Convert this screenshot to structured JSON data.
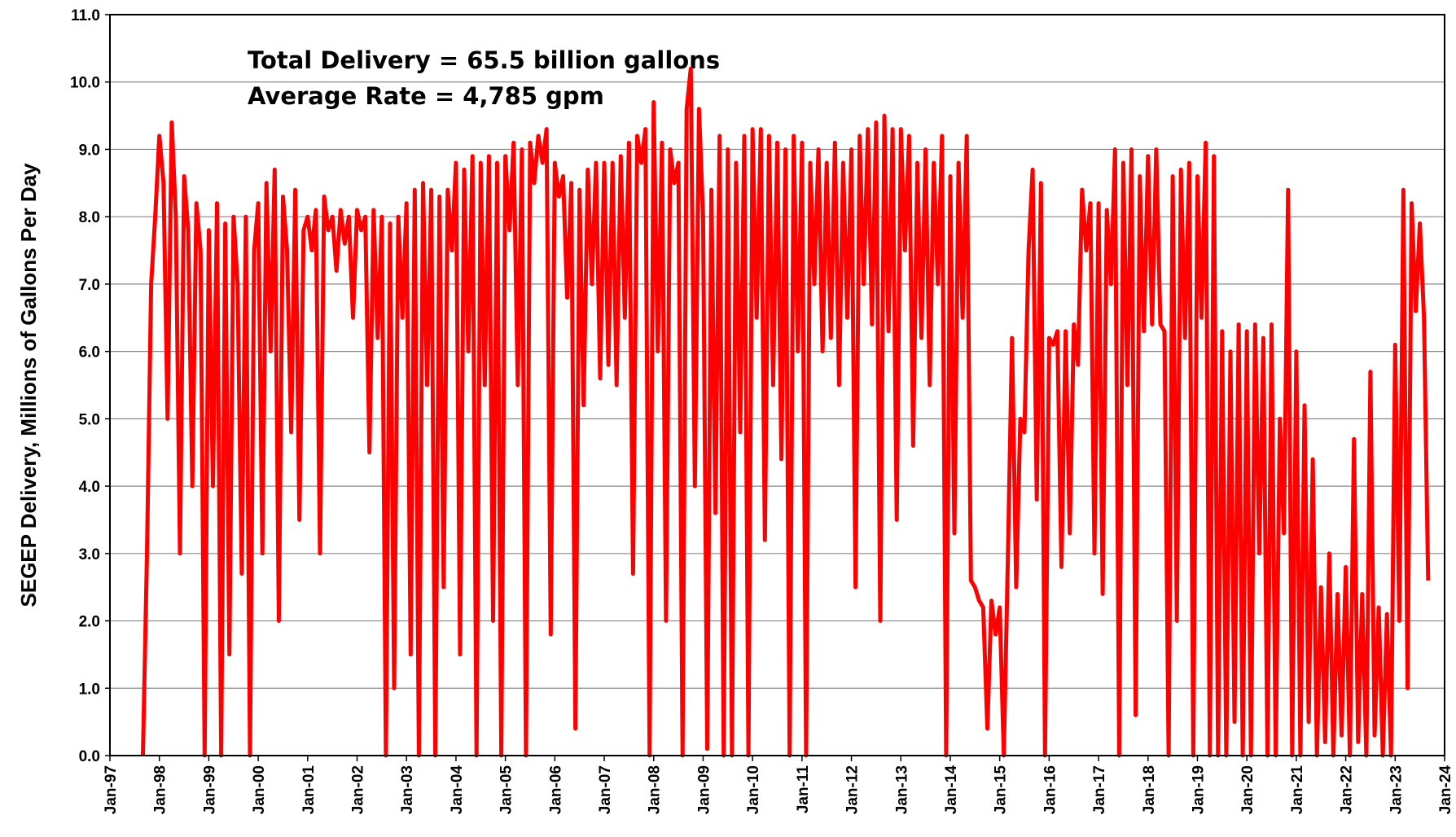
{
  "chart_data": {
    "type": "line",
    "ylabel": "SEGEP Delivery, Millions of Gallons Per Day",
    "annotations": [
      "Total Delivery = 65.5 billion gallons",
      "Average Rate = 4,785 gpm"
    ],
    "grid": true,
    "ylim": [
      0,
      11
    ],
    "yticks": [
      {
        "value": 0,
        "label": "0.0"
      },
      {
        "value": 1,
        "label": "1.0"
      },
      {
        "value": 2,
        "label": "2.0"
      },
      {
        "value": 3,
        "label": "3.0"
      },
      {
        "value": 4,
        "label": "4.0"
      },
      {
        "value": 5,
        "label": "5.0"
      },
      {
        "value": 6,
        "label": "6.0"
      },
      {
        "value": 7,
        "label": "7.0"
      },
      {
        "value": 8,
        "label": "8.0"
      },
      {
        "value": 9,
        "label": "9.0"
      },
      {
        "value": 10,
        "label": "10.0"
      },
      {
        "value": 11,
        "label": "11.0"
      }
    ],
    "xlim": [
      "1997-01",
      "2024-01"
    ],
    "xticks": [
      {
        "value": "1997-01",
        "label": "Jan-97"
      },
      {
        "value": "1998-01",
        "label": "Jan-98"
      },
      {
        "value": "1999-01",
        "label": "Jan-99"
      },
      {
        "value": "2000-01",
        "label": "Jan-00"
      },
      {
        "value": "2001-01",
        "label": "Jan-01"
      },
      {
        "value": "2002-01",
        "label": "Jan-02"
      },
      {
        "value": "2003-01",
        "label": "Jan-03"
      },
      {
        "value": "2004-01",
        "label": "Jan-04"
      },
      {
        "value": "2005-01",
        "label": "Jan-05"
      },
      {
        "value": "2006-01",
        "label": "Jan-06"
      },
      {
        "value": "2007-01",
        "label": "Jan-07"
      },
      {
        "value": "2008-01",
        "label": "Jan-08"
      },
      {
        "value": "2009-01",
        "label": "Jan-09"
      },
      {
        "value": "2010-01",
        "label": "Jan-10"
      },
      {
        "value": "2011-01",
        "label": "Jan-11"
      },
      {
        "value": "2012-01",
        "label": "Jan-12"
      },
      {
        "value": "2013-01",
        "label": "Jan-13"
      },
      {
        "value": "2014-01",
        "label": "Jan-14"
      },
      {
        "value": "2015-01",
        "label": "Jan-15"
      },
      {
        "value": "2016-01",
        "label": "Jan-16"
      },
      {
        "value": "2017-01",
        "label": "Jan-17"
      },
      {
        "value": "2018-01",
        "label": "Jan-18"
      },
      {
        "value": "2019-01",
        "label": "Jan-19"
      },
      {
        "value": "2020-01",
        "label": "Jan-20"
      },
      {
        "value": "2021-01",
        "label": "Jan-21"
      },
      {
        "value": "2022-01",
        "label": "Jan-22"
      },
      {
        "value": "2023-01",
        "label": "Jan-23"
      },
      {
        "value": "2024-01",
        "label": "Jan-24"
      }
    ],
    "x": [
      "1997-09",
      "1997-10",
      "1997-11",
      "1997-12",
      "1998-01",
      "1998-02",
      "1998-03",
      "1998-04",
      "1998-05",
      "1998-06",
      "1998-07",
      "1998-08",
      "1998-09",
      "1998-10",
      "1998-11",
      "1998-12",
      "1999-01",
      "1999-02",
      "1999-03",
      "1999-04",
      "1999-05",
      "1999-06",
      "1999-07",
      "1999-08",
      "1999-09",
      "1999-10",
      "1999-11",
      "1999-12",
      "2000-01",
      "2000-02",
      "2000-03",
      "2000-04",
      "2000-05",
      "2000-06",
      "2000-07",
      "2000-08",
      "2000-09",
      "2000-10",
      "2000-11",
      "2000-12",
      "2001-01",
      "2001-02",
      "2001-03",
      "2001-04",
      "2001-05",
      "2001-06",
      "2001-07",
      "2001-08",
      "2001-09",
      "2001-10",
      "2001-11",
      "2001-12",
      "2002-01",
      "2002-02",
      "2002-03",
      "2002-04",
      "2002-05",
      "2002-06",
      "2002-07",
      "2002-08",
      "2002-09",
      "2002-10",
      "2002-11",
      "2002-12",
      "2003-01",
      "2003-02",
      "2003-03",
      "2003-04",
      "2003-05",
      "2003-06",
      "2003-07",
      "2003-08",
      "2003-09",
      "2003-10",
      "2003-11",
      "2003-12",
      "2004-01",
      "2004-02",
      "2004-03",
      "2004-04",
      "2004-05",
      "2004-06",
      "2004-07",
      "2004-08",
      "2004-09",
      "2004-10",
      "2004-11",
      "2004-12",
      "2005-01",
      "2005-02",
      "2005-03",
      "2005-04",
      "2005-05",
      "2005-06",
      "2005-07",
      "2005-08",
      "2005-09",
      "2005-10",
      "2005-11",
      "2005-12",
      "2006-01",
      "2006-02",
      "2006-03",
      "2006-04",
      "2006-05",
      "2006-06",
      "2006-07",
      "2006-08",
      "2006-09",
      "2006-10",
      "2006-11",
      "2006-12",
      "2007-01",
      "2007-02",
      "2007-03",
      "2007-04",
      "2007-05",
      "2007-06",
      "2007-07",
      "2007-08",
      "2007-09",
      "2007-10",
      "2007-11",
      "2007-12",
      "2008-01",
      "2008-02",
      "2008-03",
      "2008-04",
      "2008-05",
      "2008-06",
      "2008-07",
      "2008-08",
      "2008-09",
      "2008-10",
      "2008-11",
      "2008-12",
      "2009-01",
      "2009-02",
      "2009-03",
      "2009-04",
      "2009-05",
      "2009-06",
      "2009-07",
      "2009-08",
      "2009-09",
      "2009-10",
      "2009-11",
      "2009-12",
      "2010-01",
      "2010-02",
      "2010-03",
      "2010-04",
      "2010-05",
      "2010-06",
      "2010-07",
      "2010-08",
      "2010-09",
      "2010-10",
      "2010-11",
      "2010-12",
      "2011-01",
      "2011-02",
      "2011-03",
      "2011-04",
      "2011-05",
      "2011-06",
      "2011-07",
      "2011-08",
      "2011-09",
      "2011-10",
      "2011-11",
      "2011-12",
      "2012-01",
      "2012-02",
      "2012-03",
      "2012-04",
      "2012-05",
      "2012-06",
      "2012-07",
      "2012-08",
      "2012-09",
      "2012-10",
      "2012-11",
      "2012-12",
      "2013-01",
      "2013-02",
      "2013-03",
      "2013-04",
      "2013-05",
      "2013-06",
      "2013-07",
      "2013-08",
      "2013-09",
      "2013-10",
      "2013-11",
      "2013-12",
      "2014-01",
      "2014-02",
      "2014-03",
      "2014-04",
      "2014-05",
      "2014-06",
      "2014-07",
      "2014-08",
      "2014-09",
      "2014-10",
      "2014-11",
      "2014-12",
      "2015-01",
      "2015-02",
      "2015-03",
      "2015-04",
      "2015-05",
      "2015-06",
      "2015-07",
      "2015-08",
      "2015-09",
      "2015-10",
      "2015-11",
      "2015-12",
      "2016-01",
      "2016-02",
      "2016-03",
      "2016-04",
      "2016-05",
      "2016-06",
      "2016-07",
      "2016-08",
      "2016-09",
      "2016-10",
      "2016-11",
      "2016-12",
      "2017-01",
      "2017-02",
      "2017-03",
      "2017-04",
      "2017-05",
      "2017-06",
      "2017-07",
      "2017-08",
      "2017-09",
      "2017-10",
      "2017-11",
      "2017-12",
      "2018-01",
      "2018-02",
      "2018-03",
      "2018-04",
      "2018-05",
      "2018-06",
      "2018-07",
      "2018-08",
      "2018-09",
      "2018-10",
      "2018-11",
      "2018-12",
      "2019-01",
      "2019-02",
      "2019-03",
      "2019-04",
      "2019-05",
      "2019-06",
      "2019-07",
      "2019-08",
      "2019-09",
      "2019-10",
      "2019-11",
      "2019-12",
      "2020-01",
      "2020-02",
      "2020-03",
      "2020-04",
      "2020-05",
      "2020-06",
      "2020-07",
      "2020-08",
      "2020-09",
      "2020-10",
      "2020-11",
      "2020-12",
      "2021-01",
      "2021-02",
      "2021-03",
      "2021-04",
      "2021-05",
      "2021-06",
      "2021-07",
      "2021-08",
      "2021-09",
      "2021-10",
      "2021-11",
      "2021-12",
      "2022-01",
      "2022-02",
      "2022-03",
      "2022-04",
      "2022-05",
      "2022-06",
      "2022-07",
      "2022-08",
      "2022-09",
      "2022-10",
      "2022-11",
      "2022-12",
      "2023-01",
      "2023-02",
      "2023-03",
      "2023-04",
      "2023-05",
      "2023-06",
      "2023-07",
      "2023-08",
      "2023-09"
    ],
    "series": [
      {
        "color": "#ff0000",
        "values": [
          0,
          3,
          7,
          8,
          9.2,
          8.5,
          5,
          9.4,
          8,
          3,
          8.6,
          7.8,
          4,
          8.2,
          7.5,
          0,
          7.8,
          4,
          8.2,
          0,
          7.9,
          1.5,
          8,
          7,
          2.7,
          8,
          0,
          7.5,
          8.2,
          3,
          8.5,
          6,
          8.7,
          2,
          8.3,
          7.5,
          4.8,
          8.4,
          3.5,
          7.8,
          8,
          7.5,
          8.1,
          3,
          8.3,
          7.8,
          8,
          7.2,
          8.1,
          7.6,
          8,
          6.5,
          8.1,
          7.8,
          8,
          4.5,
          8.1,
          6.2,
          8,
          0,
          7.9,
          1,
          8,
          6.5,
          8.2,
          1.5,
          8.4,
          0,
          8.5,
          5.5,
          8.4,
          0,
          8.3,
          2.5,
          8.4,
          7.5,
          8.8,
          1.5,
          8.7,
          6,
          8.9,
          0,
          8.8,
          5.5,
          8.9,
          2,
          8.8,
          0,
          8.9,
          7.8,
          9.1,
          5.5,
          9,
          0,
          9.1,
          8.5,
          9.2,
          8.8,
          9.3,
          1.8,
          8.8,
          8.3,
          8.6,
          6.8,
          8.5,
          0.4,
          8.4,
          5.2,
          8.7,
          7,
          8.8,
          5.6,
          8.8,
          5.8,
          8.8,
          5.5,
          8.9,
          6.5,
          9.1,
          2.7,
          9.2,
          8.8,
          9.3,
          0,
          9.7,
          6,
          9.1,
          2,
          9,
          8.5,
          8.8,
          0,
          9.6,
          10.2,
          4,
          9.6,
          8,
          0.1,
          8.4,
          3.6,
          9.2,
          0,
          9,
          0,
          8.8,
          4.8,
          9.2,
          0,
          9.3,
          6.5,
          9.3,
          3.2,
          9.2,
          5.5,
          9.1,
          4.4,
          9,
          0,
          9.2,
          6,
          9.1,
          0,
          8.8,
          7,
          9,
          6,
          8.8,
          6.2,
          9.1,
          5.5,
          8.8,
          6.5,
          9,
          2.5,
          9.2,
          7,
          9.3,
          6.4,
          9.4,
          2,
          9.5,
          6.3,
          9.3,
          3.5,
          9.3,
          7.5,
          9.2,
          4.6,
          8.8,
          6.2,
          9,
          5.5,
          8.8,
          7,
          9.2,
          0,
          8.6,
          3.3,
          8.8,
          6.5,
          9.2,
          2.6,
          2.5,
          2.3,
          2.2,
          0.4,
          2.3,
          1.8,
          2.2,
          0,
          3,
          6.2,
          2.5,
          5,
          4.8,
          7.5,
          8.7,
          3.8,
          8.5,
          0,
          6.2,
          6.1,
          6.3,
          2.8,
          6.3,
          3.3,
          6.4,
          5.8,
          8.4,
          7.5,
          8.2,
          3,
          8.2,
          2.4,
          8.1,
          7,
          9,
          0,
          8.8,
          5.5,
          9,
          0.6,
          8.6,
          6.3,
          8.9,
          6.4,
          9,
          6.4,
          6.3,
          0,
          8.6,
          2,
          8.7,
          6.2,
          8.8,
          0,
          8.6,
          6.5,
          9.1,
          0,
          8.9,
          0,
          6.3,
          0,
          6,
          0.5,
          6.4,
          0,
          6.3,
          0,
          6.4,
          3,
          6.2,
          0,
          6.4,
          0,
          5,
          3.3,
          8.4,
          0,
          6,
          0,
          5.2,
          0.5,
          4.4,
          0,
          2.5,
          0.2,
          3,
          0,
          2.4,
          0.3,
          2.8,
          0,
          4.7,
          0.2,
          2.4,
          0,
          5.7,
          0.3,
          2.2,
          0,
          2.1,
          0,
          6.1,
          2,
          8.4,
          1,
          8.2,
          6.6,
          7.9,
          6.5,
          2.6
        ]
      }
    ]
  }
}
